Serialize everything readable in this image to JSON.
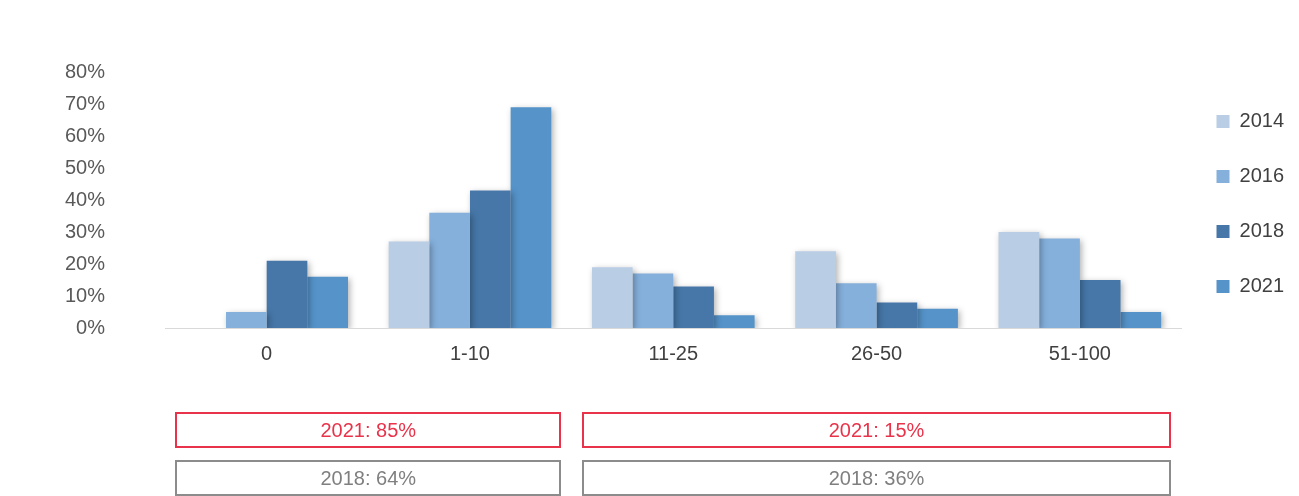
{
  "chart_data": {
    "type": "bar",
    "categories": [
      "0",
      "1-10",
      "11-25",
      "26-50",
      "51-100"
    ],
    "series": [
      {
        "name": "2014",
        "color": "#b9cde5",
        "values": [
          0,
          27,
          19,
          24,
          30
        ]
      },
      {
        "name": "2016",
        "color": "#85b0dc",
        "values": [
          5,
          36,
          17,
          14,
          28
        ]
      },
      {
        "name": "2018",
        "color": "#4677a8",
        "values": [
          21,
          43,
          13,
          8,
          15
        ]
      },
      {
        "name": "2021",
        "color": "#5593c9",
        "values": [
          16,
          69,
          4,
          6,
          5
        ]
      }
    ],
    "ylim": [
      0,
      80
    ],
    "yticks": [
      {
        "value": 0,
        "label": "0%"
      },
      {
        "value": 10,
        "label": "10%"
      },
      {
        "value": 20,
        "label": "20%"
      },
      {
        "value": 30,
        "label": "30%"
      },
      {
        "value": 40,
        "label": "40%"
      },
      {
        "value": 50,
        "label": "50%"
      },
      {
        "value": 60,
        "label": "60%"
      },
      {
        "value": 70,
        "label": "70%"
      },
      {
        "value": 80,
        "label": "80%"
      }
    ],
    "grid": false,
    "legend": "right",
    "annotations": [
      "2021: 85%",
      "2018: 64%",
      "2021: 15%",
      "2018: 36%"
    ]
  }
}
